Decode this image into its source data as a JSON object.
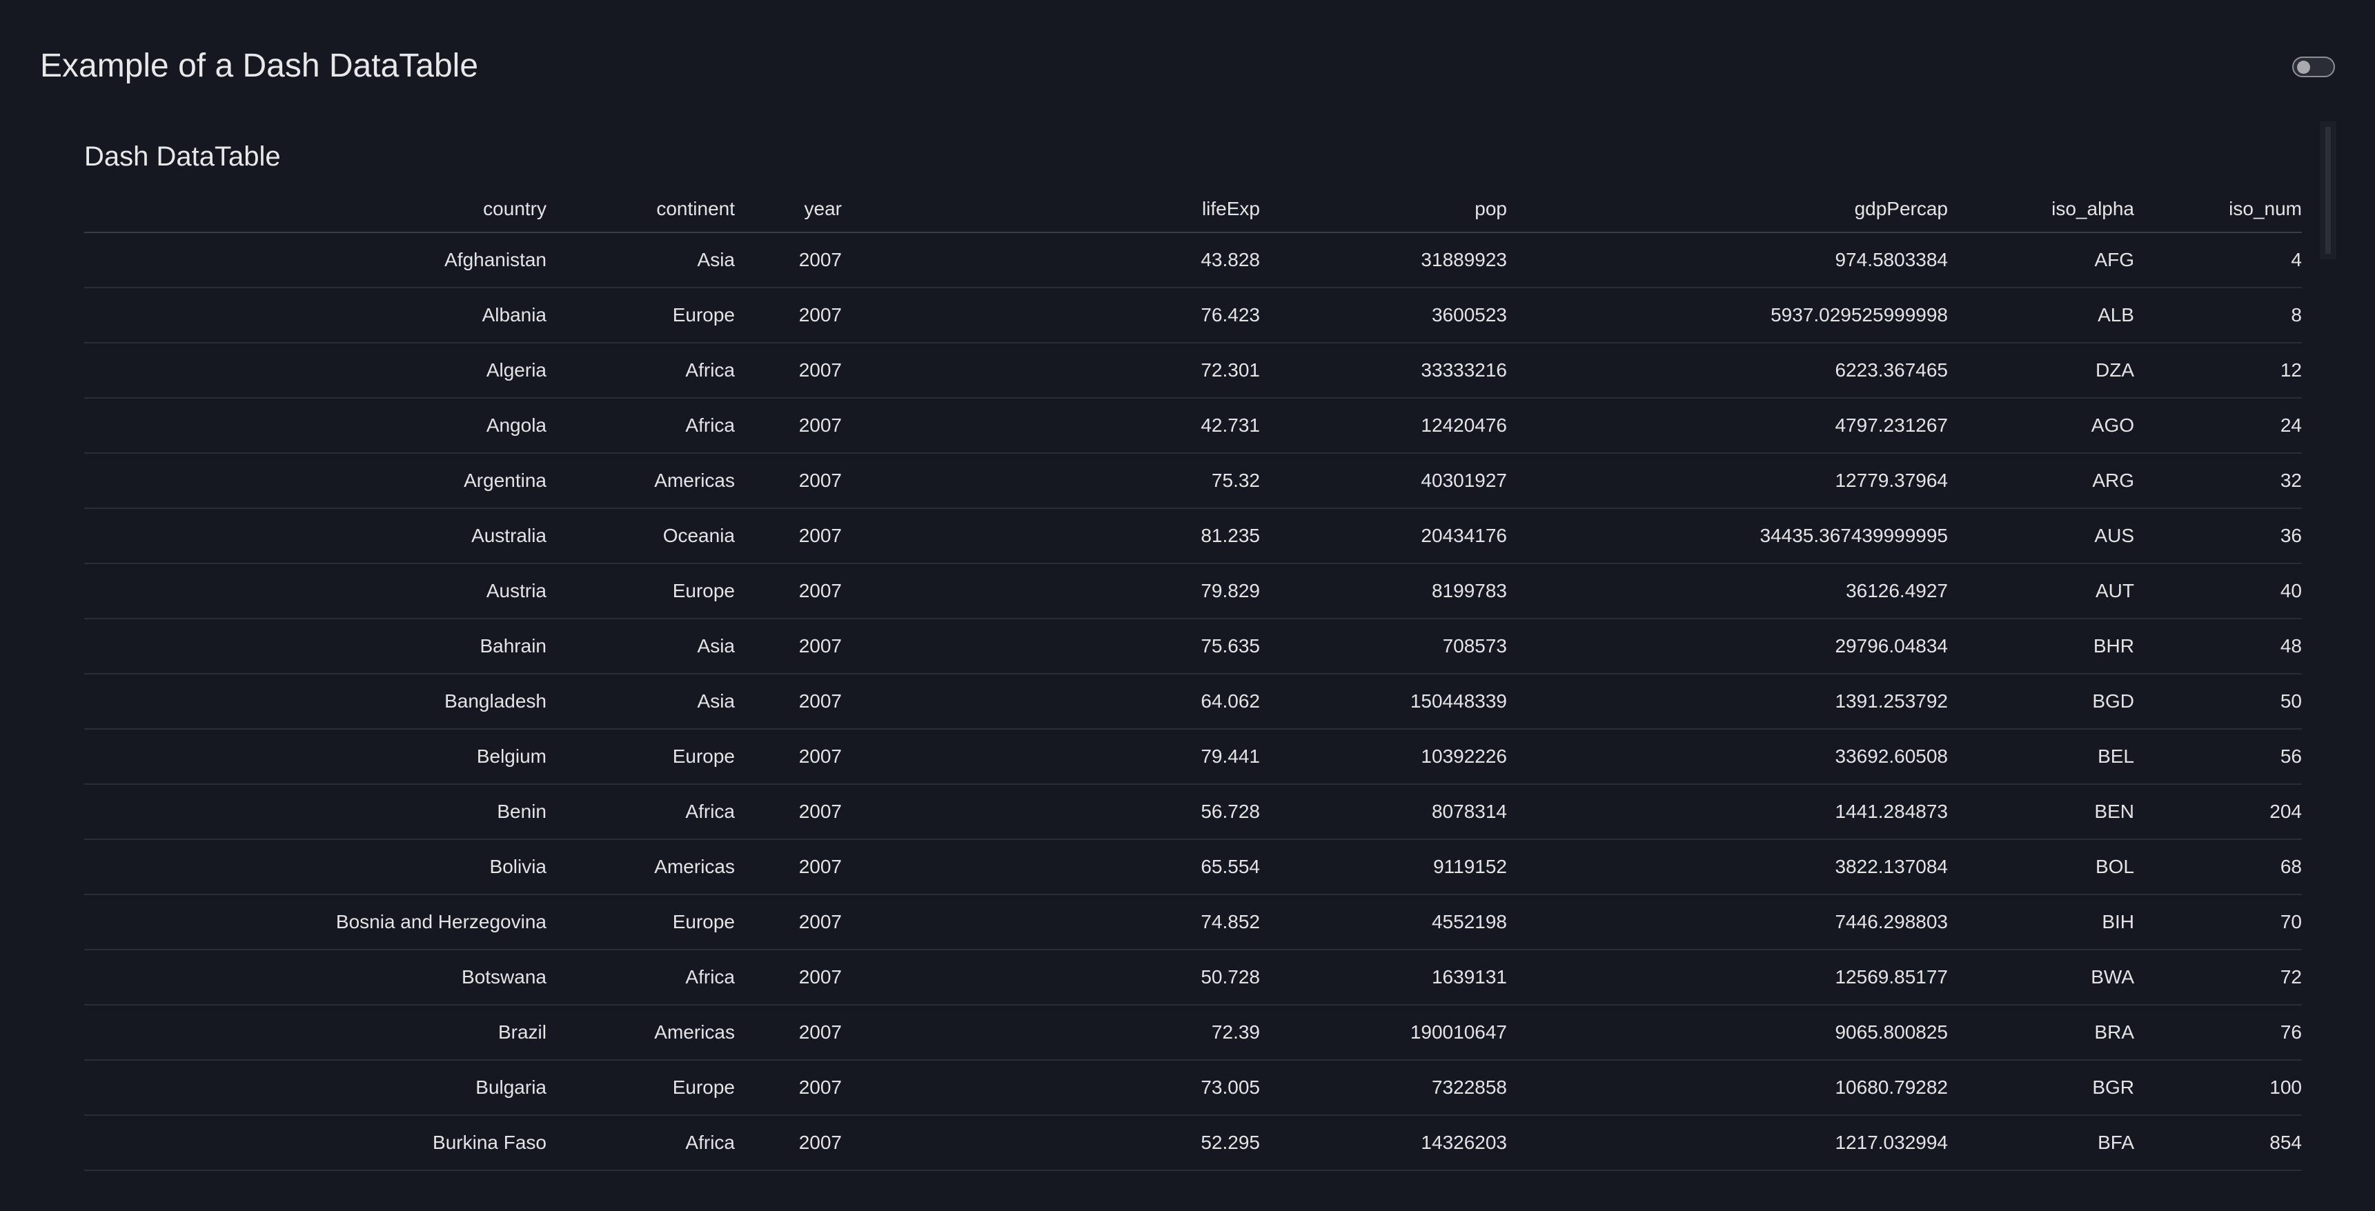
{
  "header": {
    "title": "Example of a Dash DataTable",
    "theme_toggle_on": false
  },
  "card": {
    "title": "Dash DataTable"
  },
  "table": {
    "columns": [
      "country",
      "continent",
      "year",
      "lifeExp",
      "pop",
      "gdpPercap",
      "iso_alpha",
      "iso_num"
    ],
    "rows": [
      [
        "Afghanistan",
        "Asia",
        "2007",
        "43.828",
        "31889923",
        "974.5803384",
        "AFG",
        "4"
      ],
      [
        "Albania",
        "Europe",
        "2007",
        "76.423",
        "3600523",
        "5937.029525999998",
        "ALB",
        "8"
      ],
      [
        "Algeria",
        "Africa",
        "2007",
        "72.301",
        "33333216",
        "6223.367465",
        "DZA",
        "12"
      ],
      [
        "Angola",
        "Africa",
        "2007",
        "42.731",
        "12420476",
        "4797.231267",
        "AGO",
        "24"
      ],
      [
        "Argentina",
        "Americas",
        "2007",
        "75.32",
        "40301927",
        "12779.37964",
        "ARG",
        "32"
      ],
      [
        "Australia",
        "Oceania",
        "2007",
        "81.235",
        "20434176",
        "34435.367439999995",
        "AUS",
        "36"
      ],
      [
        "Austria",
        "Europe",
        "2007",
        "79.829",
        "8199783",
        "36126.4927",
        "AUT",
        "40"
      ],
      [
        "Bahrain",
        "Asia",
        "2007",
        "75.635",
        "708573",
        "29796.04834",
        "BHR",
        "48"
      ],
      [
        "Bangladesh",
        "Asia",
        "2007",
        "64.062",
        "150448339",
        "1391.253792",
        "BGD",
        "50"
      ],
      [
        "Belgium",
        "Europe",
        "2007",
        "79.441",
        "10392226",
        "33692.60508",
        "BEL",
        "56"
      ],
      [
        "Benin",
        "Africa",
        "2007",
        "56.728",
        "8078314",
        "1441.284873",
        "BEN",
        "204"
      ],
      [
        "Bolivia",
        "Americas",
        "2007",
        "65.554",
        "9119152",
        "3822.137084",
        "BOL",
        "68"
      ],
      [
        "Bosnia and Herzegovina",
        "Europe",
        "2007",
        "74.852",
        "4552198",
        "7446.298803",
        "BIH",
        "70"
      ],
      [
        "Botswana",
        "Africa",
        "2007",
        "50.728",
        "1639131",
        "12569.85177",
        "BWA",
        "72"
      ],
      [
        "Brazil",
        "Americas",
        "2007",
        "72.39",
        "190010647",
        "9065.800825",
        "BRA",
        "76"
      ],
      [
        "Bulgaria",
        "Europe",
        "2007",
        "73.005",
        "7322858",
        "10680.79282",
        "BGR",
        "100"
      ],
      [
        "Burkina Faso",
        "Africa",
        "2007",
        "52.295",
        "14326203",
        "1217.032994",
        "BFA",
        "854"
      ]
    ]
  },
  "colors": {
    "background": "#151821",
    "text": "#e4e4e6",
    "divider": "#2b2e36"
  }
}
